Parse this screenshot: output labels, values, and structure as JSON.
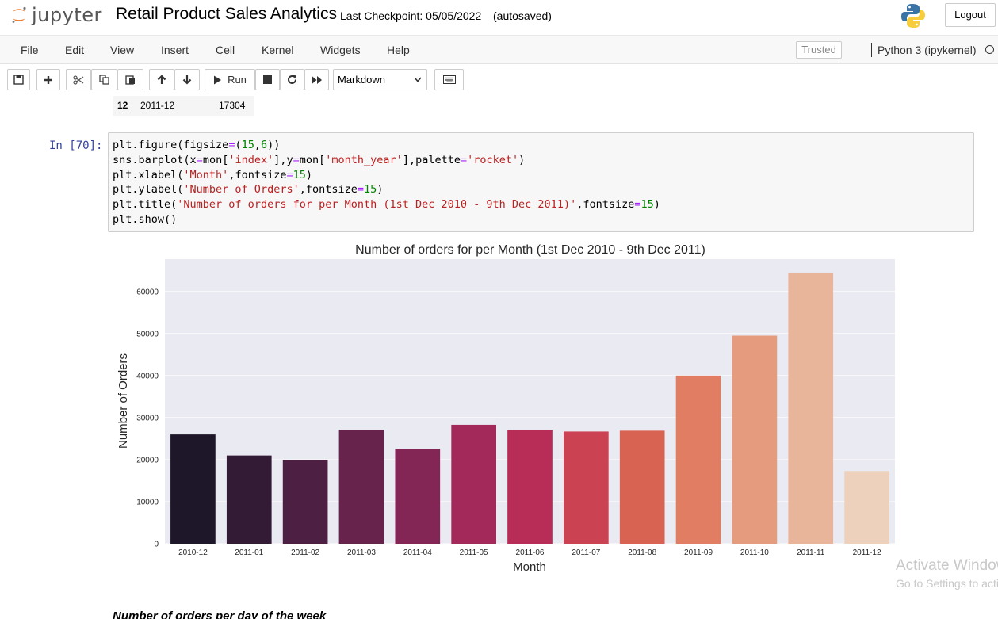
{
  "header": {
    "logo_text": "jupyter",
    "notebook_name": "Retail Product Sales Analytics",
    "checkpoint": "Last Checkpoint: 05/05/2022",
    "autosave": "(autosaved)",
    "logout_label": "Logout"
  },
  "menubar": {
    "items": [
      "File",
      "Edit",
      "View",
      "Insert",
      "Cell",
      "Kernel",
      "Widgets",
      "Help"
    ],
    "trusted_label": "Trusted",
    "kernel_name": "Python 3 (ipykernel)"
  },
  "toolbar": {
    "run_label": "Run",
    "cell_type": "Markdown",
    "icons": [
      "save-icon",
      "plus-icon",
      "cut-icon",
      "copy-icon",
      "paste-icon",
      "arrow-up-icon",
      "arrow-down-icon",
      "run-icon",
      "stop-icon",
      "restart-icon",
      "fast-forward-icon",
      "keyboard-icon"
    ]
  },
  "output_row": {
    "index": "12",
    "month": "2011-12",
    "value": "17304"
  },
  "cell": {
    "prompt": "In [70]:",
    "code_lines": [
      "plt.figure(figsize=(15,6))",
      "sns.barplot(x=mon['index'],y=mon['month_year'],palette='rocket')",
      "plt.xlabel('Month',fontsize=15)",
      "plt.ylabel('Number of Orders',fontsize=15)",
      "plt.title('Number of orders for per Month (1st Dec 2010 - 9th Dec 2011)',fontsize=15)",
      "plt.show()"
    ]
  },
  "chart_data": {
    "type": "bar",
    "title": "Number of orders for per Month (1st Dec 2010 - 9th Dec 2011)",
    "xlabel": "Month",
    "ylabel": "Number of Orders",
    "categories": [
      "2010-12",
      "2011-01",
      "2011-02",
      "2011-03",
      "2011-04",
      "2011-05",
      "2011-06",
      "2011-07",
      "2011-08",
      "2011-09",
      "2011-10",
      "2011-11",
      "2011-12"
    ],
    "values": [
      26000,
      21000,
      19900,
      27100,
      22600,
      28300,
      27100,
      26700,
      26900,
      40000,
      49500,
      64500,
      17304
    ],
    "colors": [
      "#1e1629",
      "#331b36",
      "#4d1f42",
      "#68234d",
      "#842655",
      "#a2295a",
      "#b82c58",
      "#cb4252",
      "#d96352",
      "#e17d62",
      "#e59b7d",
      "#e9b59a",
      "#eed1bc"
    ],
    "yticks": [
      0,
      10000,
      20000,
      30000,
      40000,
      50000,
      60000
    ],
    "ylim": [
      0,
      67700
    ],
    "grid": true,
    "background": "#eaeaf2"
  },
  "watermark": {
    "line1": "Activate Windows",
    "line2": "Go to Settings to activate Windows."
  },
  "next_heading": "Number of orders per day of the week"
}
